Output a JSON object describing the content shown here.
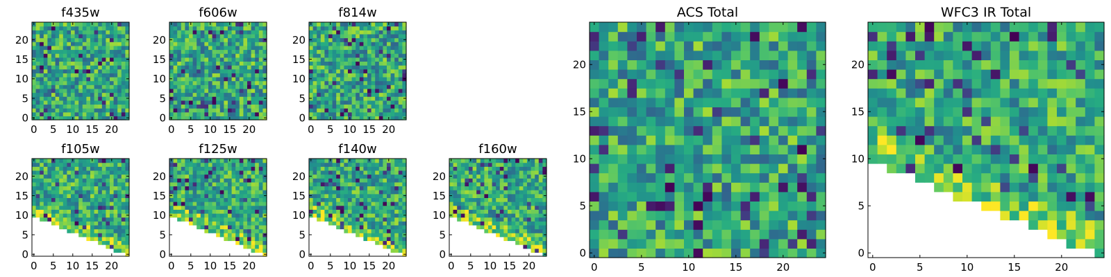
{
  "chart_data": [
    {
      "type": "heatmap",
      "title": "f435w",
      "xlim": [
        0,
        24
      ],
      "ylim": [
        0,
        24
      ],
      "xticks": [
        0,
        5,
        10,
        15,
        20
      ],
      "yticks": [
        0,
        5,
        10,
        15,
        20
      ],
      "grid": false,
      "colormap": "viridis",
      "masked": "none"
    },
    {
      "type": "heatmap",
      "title": "f606w",
      "xlim": [
        0,
        24
      ],
      "ylim": [
        0,
        24
      ],
      "xticks": [
        0,
        5,
        10,
        15,
        20
      ],
      "yticks": [
        0,
        5,
        10,
        15,
        20
      ],
      "grid": false,
      "colormap": "viridis",
      "masked": "none"
    },
    {
      "type": "heatmap",
      "title": "f814w",
      "xlim": [
        0,
        24
      ],
      "ylim": [
        0,
        24
      ],
      "xticks": [
        0,
        5,
        10,
        15,
        20
      ],
      "yticks": [
        0,
        5,
        10,
        15,
        20
      ],
      "grid": false,
      "colormap": "viridis",
      "masked": "none"
    },
    {
      "type": "heatmap",
      "title": "f105w",
      "xlim": [
        0,
        24
      ],
      "ylim": [
        0,
        24
      ],
      "xticks": [
        0,
        5,
        10,
        15,
        20
      ],
      "yticks": [
        0,
        5,
        10,
        15,
        20
      ],
      "grid": false,
      "colormap": "viridis",
      "masked": "lower-left triangle below line from (0,10) to (24,0)"
    },
    {
      "type": "heatmap",
      "title": "f125w",
      "xlim": [
        0,
        24
      ],
      "ylim": [
        0,
        24
      ],
      "xticks": [
        0,
        5,
        10,
        15,
        20
      ],
      "yticks": [
        0,
        5,
        10,
        15,
        20
      ],
      "grid": false,
      "colormap": "viridis",
      "masked": "lower-left triangle below line from (0,10) to (24,0)"
    },
    {
      "type": "heatmap",
      "title": "f140w",
      "xlim": [
        0,
        24
      ],
      "ylim": [
        0,
        24
      ],
      "xticks": [
        0,
        5,
        10,
        15,
        20
      ],
      "yticks": [
        0,
        5,
        10,
        15,
        20
      ],
      "grid": false,
      "colormap": "viridis",
      "masked": "lower-left triangle below line from (0,10) to (24,0)"
    },
    {
      "type": "heatmap",
      "title": "f160w",
      "xlim": [
        0,
        24
      ],
      "ylim": [
        0,
        24
      ],
      "xticks": [
        0,
        5,
        10,
        15,
        20
      ],
      "yticks": [
        0,
        5,
        10,
        15,
        20
      ],
      "grid": false,
      "colormap": "viridis",
      "masked": "lower-left triangle below line from (0,10) to (24,0)"
    },
    {
      "type": "heatmap",
      "title": "ACS Total",
      "xlim": [
        0,
        24
      ],
      "ylim": [
        0,
        24
      ],
      "xticks": [
        0,
        5,
        10,
        15,
        20
      ],
      "yticks": [
        0,
        5,
        10,
        15,
        20
      ],
      "grid": false,
      "colormap": "viridis",
      "masked": "none"
    },
    {
      "type": "heatmap",
      "title": "WFC3 IR Total",
      "xlim": [
        0,
        24
      ],
      "ylim": [
        0,
        24
      ],
      "xticks": [
        0,
        5,
        10,
        15,
        20
      ],
      "yticks": [
        0,
        5,
        10,
        15,
        20
      ],
      "grid": false,
      "colormap": "viridis",
      "masked": "lower-left triangle below line from (0,10) to (24,0)"
    }
  ]
}
